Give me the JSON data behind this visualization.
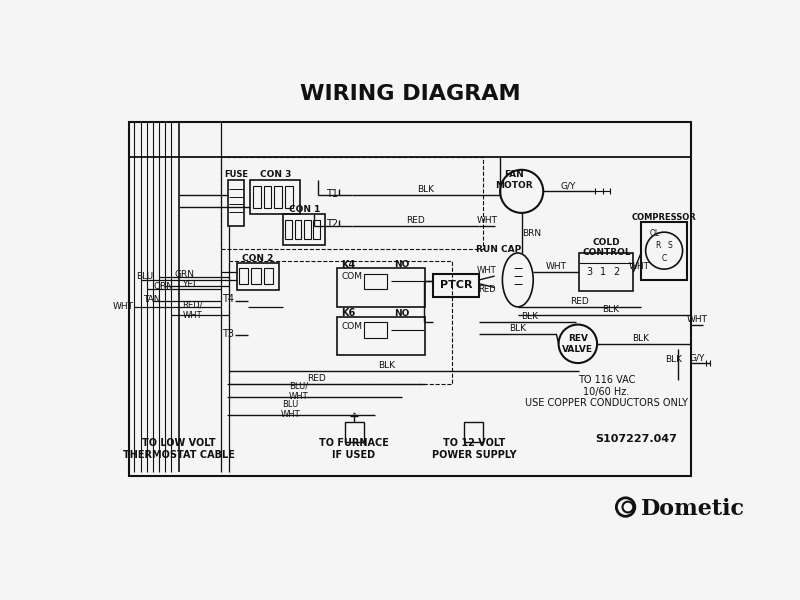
{
  "title": "WIRING DIAGRAM",
  "bg_color": "#f5f5f5",
  "fg_color": "#111111",
  "title_fontsize": 16,
  "part_number": "S107227.047",
  "brand_text": "Dometic"
}
